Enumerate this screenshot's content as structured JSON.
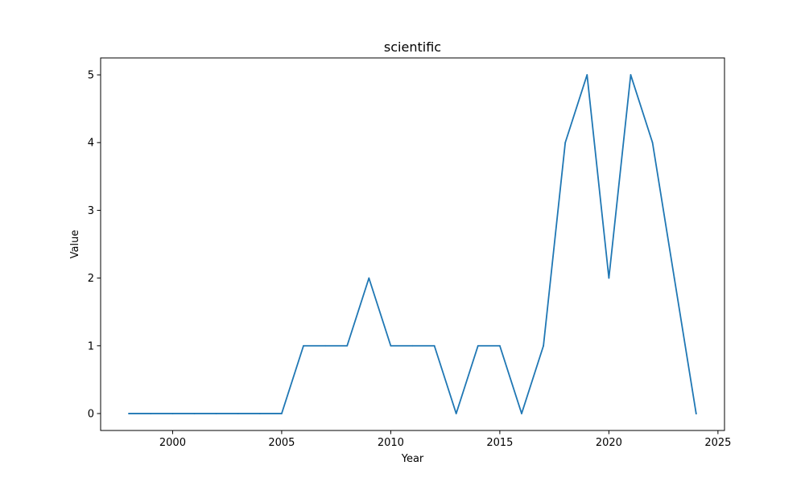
{
  "chart_data": {
    "type": "line",
    "title": "scientific",
    "xlabel": "Year",
    "ylabel": "Value",
    "x": [
      1998,
      1999,
      2000,
      2001,
      2002,
      2003,
      2004,
      2005,
      2006,
      2007,
      2008,
      2009,
      2010,
      2011,
      2012,
      2013,
      2014,
      2015,
      2016,
      2017,
      2018,
      2019,
      2020,
      2021,
      2022,
      2023,
      2024
    ],
    "series": [
      {
        "name": "",
        "values": [
          0,
          0,
          0,
          0,
          0,
          0,
          0,
          0,
          1,
          1,
          1,
          2,
          1,
          1,
          1,
          0,
          1,
          1,
          0,
          1,
          4,
          5,
          2,
          5,
          4,
          2,
          0
        ],
        "color": "#1f77b4"
      }
    ],
    "xlim": [
      1996.7,
      2025.3
    ],
    "ylim": [
      -0.25,
      5.25
    ],
    "xticks": [
      2000,
      2005,
      2010,
      2015,
      2020,
      2025
    ],
    "yticks": [
      0,
      1,
      2,
      3,
      4,
      5
    ],
    "grid": false,
    "legend": "none"
  }
}
